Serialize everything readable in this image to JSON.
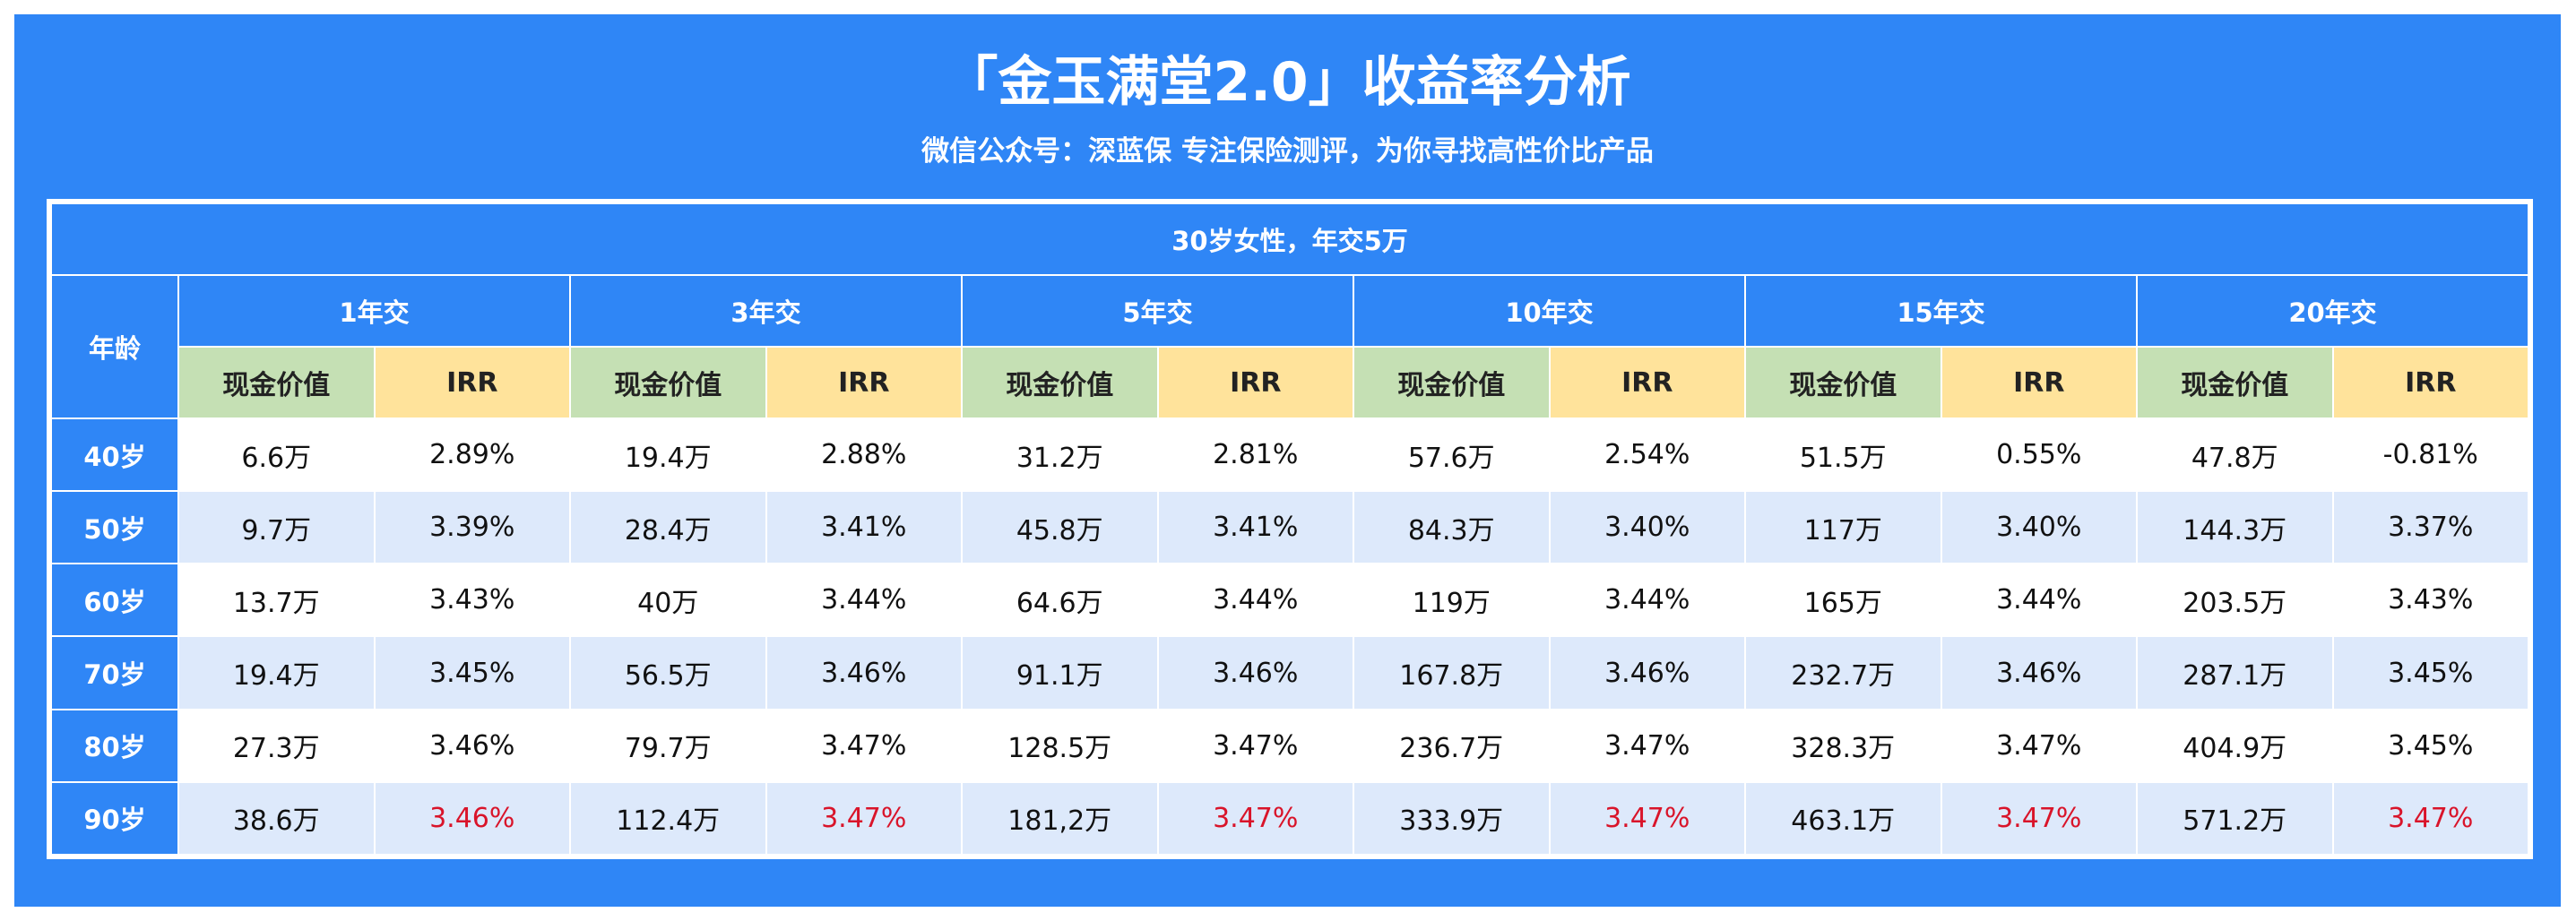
{
  "title": "「金玉满堂2.0」收益率分析",
  "subtitle": "微信公众号：深蓝保    专注保险测评，为你寻找高性价比产品",
  "table": {
    "caption": "30岁女性，年交5万",
    "age_header": "年龄",
    "terms": [
      "1年交",
      "3年交",
      "5年交",
      "10年交",
      "15年交",
      "20年交"
    ],
    "col_cash": "现金价值",
    "col_irr": "IRR",
    "rows": [
      {
        "age": "40岁",
        "cells": [
          "6.6万",
          "2.89%",
          "19.4万",
          "2.88%",
          "31.2万",
          "2.81%",
          "57.6万",
          "2.54%",
          "51.5万",
          "0.55%",
          "47.8万",
          "-0.81%"
        ]
      },
      {
        "age": "50岁",
        "cells": [
          "9.7万",
          "3.39%",
          "28.4万",
          "3.41%",
          "45.8万",
          "3.41%",
          "84.3万",
          "3.40%",
          "117万",
          "3.40%",
          "144.3万",
          "3.37%"
        ]
      },
      {
        "age": "60岁",
        "cells": [
          "13.7万",
          "3.43%",
          "40万",
          "3.44%",
          "64.6万",
          "3.44%",
          "119万",
          "3.44%",
          "165万",
          "3.44%",
          "203.5万",
          "3.43%"
        ]
      },
      {
        "age": "70岁",
        "cells": [
          "19.4万",
          "3.45%",
          "56.5万",
          "3.46%",
          "91.1万",
          "3.46%",
          "167.8万",
          "3.46%",
          "232.7万",
          "3.46%",
          "287.1万",
          "3.45%"
        ]
      },
      {
        "age": "80岁",
        "cells": [
          "27.3万",
          "3.46%",
          "79.7万",
          "3.47%",
          "128.5万",
          "3.47%",
          "236.7万",
          "3.47%",
          "328.3万",
          "3.47%",
          "404.9万",
          "3.45%"
        ]
      },
      {
        "age": "90岁",
        "cells": [
          "38.6万",
          "3.46%",
          "112.4万",
          "3.47%",
          "181,2万",
          "3.47%",
          "333.9万",
          "3.47%",
          "463.1万",
          "3.47%",
          "571.2万",
          "3.47%"
        ],
        "highlight_irr": true
      }
    ]
  },
  "colors": {
    "accent": "#2f86f6",
    "cash_header": "#c5e0b4",
    "irr_header": "#ffe39b",
    "stripe": "#dde9fb",
    "highlight": "#d9142a"
  }
}
